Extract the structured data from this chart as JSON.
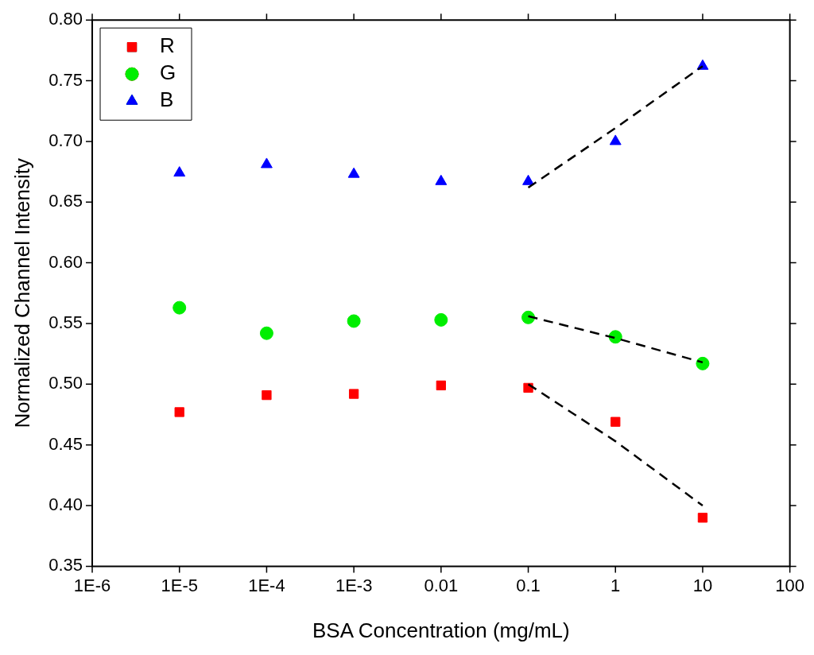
{
  "chart_data": {
    "type": "scatter",
    "xlabel": "BSA Concentration (mg/mL)",
    "ylabel": "Normalized Channel Intensity",
    "log": "x",
    "grid": false,
    "legend": "top left",
    "x": [
      1e-05,
      0.0001,
      0.001,
      0.01,
      0.1,
      1,
      10
    ],
    "series": [
      {
        "name": "R",
        "color": "#ff0000",
        "marker": "square",
        "values": [
          0.477,
          0.491,
          0.492,
          0.499,
          0.497,
          0.469,
          0.39
        ]
      },
      {
        "name": "G",
        "color": "#00ee00",
        "marker": "circle",
        "values": [
          0.563,
          0.542,
          0.552,
          0.553,
          0.555,
          0.539,
          0.517
        ]
      },
      {
        "name": "B",
        "color": "#0000ff",
        "marker": "triangle",
        "values": [
          0.674,
          0.681,
          0.673,
          0.667,
          0.667,
          0.7,
          0.762
        ]
      },
      {
        "type": "line",
        "color": "#000000",
        "marker": "none",
        "line_style": "dashed",
        "x": [
          0.1,
          1,
          10
        ],
        "values": [
          0.5,
          0.453,
          0.4
        ]
      },
      {
        "type": "line",
        "color": "#000000",
        "marker": "none",
        "line_style": "dashed",
        "x": [
          0.1,
          1,
          10
        ],
        "values": [
          0.556,
          0.538,
          0.518
        ]
      },
      {
        "type": "line",
        "color": "#000000",
        "marker": "none",
        "line_style": "dashed",
        "x": [
          0.1,
          1,
          10
        ],
        "values": [
          0.662,
          0.711,
          0.762
        ]
      }
    ],
    "xlim": [
      1e-06,
      100
    ],
    "xticks": [
      {
        "value": 1e-06,
        "label": "1E-6"
      },
      {
        "value": 1e-05,
        "label": "1E-5"
      },
      {
        "value": 0.0001,
        "label": "1E-4"
      },
      {
        "value": 0.001,
        "label": "1E-3"
      },
      {
        "value": 0.01,
        "label": "0.01"
      },
      {
        "value": 0.1,
        "label": "0.1"
      },
      {
        "value": 1,
        "label": "1"
      },
      {
        "value": 10,
        "label": "10"
      },
      {
        "value": 100,
        "label": "100"
      }
    ],
    "ylim": [
      0.35,
      0.8
    ],
    "yticks": [
      {
        "value": 0.35,
        "label": "0.35"
      },
      {
        "value": 0.4,
        "label": "0.40"
      },
      {
        "value": 0.45,
        "label": "0.45"
      },
      {
        "value": 0.5,
        "label": "0.50"
      },
      {
        "value": 0.55,
        "label": "0.55"
      },
      {
        "value": 0.6,
        "label": "0.60"
      },
      {
        "value": 0.65,
        "label": "0.65"
      },
      {
        "value": 0.7,
        "label": "0.70"
      },
      {
        "value": 0.75,
        "label": "0.75"
      },
      {
        "value": 0.8,
        "label": "0.80"
      }
    ]
  }
}
